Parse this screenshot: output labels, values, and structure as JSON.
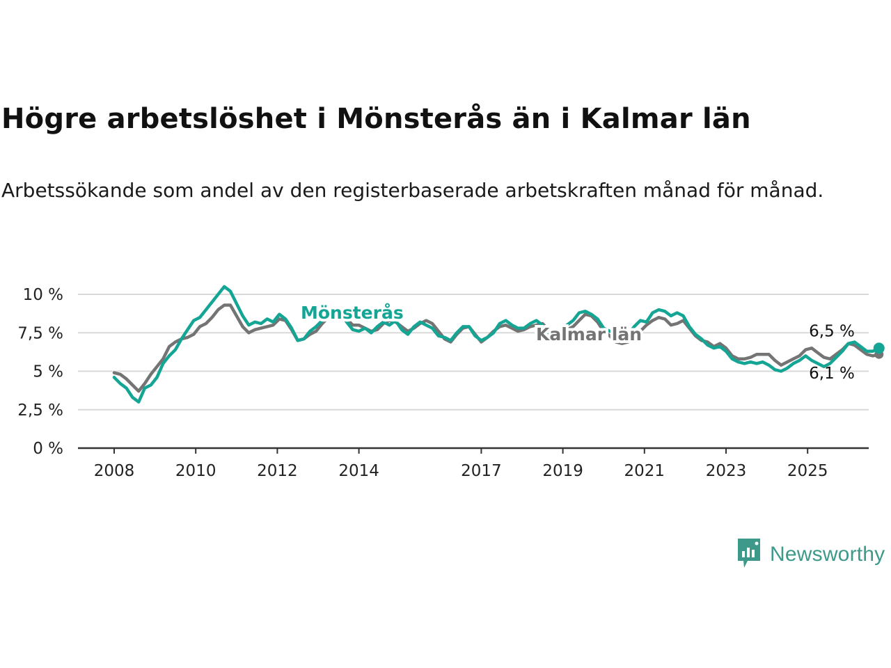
{
  "title": "Högre arbetslöshet i Mönsterås än i Kalmar län",
  "subtitle": "Arbetssökande som andel av den registerbaserade arbetskraften månad för månad.",
  "brand": {
    "name": "Newsworthy",
    "icon": "newsworthy-chart-icon",
    "color": "#3d9a8b"
  },
  "chart_data": {
    "type": "line",
    "x_type": "year",
    "xlim": [
      2006.8,
      2026.5
    ],
    "ylim": [
      0,
      10
    ],
    "y_ticks": [
      "0 %",
      "2,5 %",
      "5 %",
      "7,5 %",
      "10 %"
    ],
    "y_tick_values": [
      0,
      2.5,
      5,
      7.5,
      10
    ],
    "x_ticks": [
      "2008",
      "2010",
      "2012",
      "2014",
      "2017",
      "2019",
      "2021",
      "2023",
      "2025"
    ],
    "x_tick_values": [
      2008,
      2010,
      2012,
      2014,
      2017,
      2019,
      2021,
      2023,
      2025
    ],
    "grid": "horizontal",
    "series": [
      {
        "name": "Kalmar län",
        "color": "#747474",
        "end_label": "6,1 %",
        "points": [
          [
            2008.0,
            4.9
          ],
          [
            2008.15,
            4.8
          ],
          [
            2008.3,
            4.5
          ],
          [
            2008.45,
            4.1
          ],
          [
            2008.6,
            3.7
          ],
          [
            2008.75,
            4.2
          ],
          [
            2008.9,
            4.8
          ],
          [
            2009.05,
            5.3
          ],
          [
            2009.2,
            5.8
          ],
          [
            2009.35,
            6.6
          ],
          [
            2009.5,
            6.9
          ],
          [
            2009.65,
            7.1
          ],
          [
            2009.8,
            7.2
          ],
          [
            2009.95,
            7.4
          ],
          [
            2010.1,
            7.9
          ],
          [
            2010.25,
            8.1
          ],
          [
            2010.4,
            8.5
          ],
          [
            2010.55,
            9.0
          ],
          [
            2010.7,
            9.3
          ],
          [
            2010.85,
            9.3
          ],
          [
            2011.0,
            8.6
          ],
          [
            2011.15,
            7.9
          ],
          [
            2011.3,
            7.5
          ],
          [
            2011.45,
            7.7
          ],
          [
            2011.6,
            7.8
          ],
          [
            2011.75,
            7.9
          ],
          [
            2011.9,
            8.0
          ],
          [
            2012.05,
            8.4
          ],
          [
            2012.2,
            8.3
          ],
          [
            2012.35,
            7.7
          ],
          [
            2012.5,
            7.0
          ],
          [
            2012.65,
            7.1
          ],
          [
            2012.8,
            7.4
          ],
          [
            2012.95,
            7.6
          ],
          [
            2013.1,
            8.1
          ],
          [
            2013.25,
            8.5
          ],
          [
            2013.4,
            8.8
          ],
          [
            2013.55,
            8.9
          ],
          [
            2013.7,
            8.4
          ],
          [
            2013.85,
            8.0
          ],
          [
            2014.0,
            8.0
          ],
          [
            2014.15,
            7.8
          ],
          [
            2014.3,
            7.6
          ],
          [
            2014.45,
            7.7
          ],
          [
            2014.6,
            8.1
          ],
          [
            2014.75,
            8.3
          ],
          [
            2014.9,
            8.2
          ],
          [
            2015.05,
            7.9
          ],
          [
            2015.2,
            7.6
          ],
          [
            2015.35,
            7.8
          ],
          [
            2015.5,
            8.1
          ],
          [
            2015.65,
            8.3
          ],
          [
            2015.8,
            8.1
          ],
          [
            2015.95,
            7.6
          ],
          [
            2016.1,
            7.1
          ],
          [
            2016.25,
            6.9
          ],
          [
            2016.4,
            7.4
          ],
          [
            2016.55,
            7.8
          ],
          [
            2016.7,
            7.9
          ],
          [
            2016.85,
            7.4
          ],
          [
            2017.0,
            6.9
          ],
          [
            2017.15,
            7.2
          ],
          [
            2017.3,
            7.6
          ],
          [
            2017.45,
            7.9
          ],
          [
            2017.6,
            8.0
          ],
          [
            2017.75,
            7.8
          ],
          [
            2017.9,
            7.6
          ],
          [
            2018.05,
            7.7
          ],
          [
            2018.2,
            7.9
          ],
          [
            2018.35,
            8.0
          ],
          [
            2018.5,
            8.1
          ],
          [
            2018.65,
            7.7
          ],
          [
            2018.8,
            7.3
          ],
          [
            2018.95,
            7.4
          ],
          [
            2019.1,
            7.7
          ],
          [
            2019.25,
            7.9
          ],
          [
            2019.4,
            8.3
          ],
          [
            2019.55,
            8.7
          ],
          [
            2019.7,
            8.6
          ],
          [
            2019.85,
            8.2
          ],
          [
            2020.0,
            7.6
          ],
          [
            2020.15,
            7.3
          ],
          [
            2020.3,
            6.9
          ],
          [
            2020.45,
            6.8
          ],
          [
            2020.6,
            6.9
          ],
          [
            2020.75,
            7.2
          ],
          [
            2020.9,
            7.6
          ],
          [
            2021.05,
            8.0
          ],
          [
            2021.2,
            8.3
          ],
          [
            2021.35,
            8.5
          ],
          [
            2021.5,
            8.4
          ],
          [
            2021.65,
            8.0
          ],
          [
            2021.8,
            8.1
          ],
          [
            2021.95,
            8.3
          ],
          [
            2022.1,
            7.8
          ],
          [
            2022.25,
            7.3
          ],
          [
            2022.4,
            7.0
          ],
          [
            2022.55,
            6.9
          ],
          [
            2022.7,
            6.6
          ],
          [
            2022.85,
            6.8
          ],
          [
            2023.0,
            6.5
          ],
          [
            2023.15,
            6.0
          ],
          [
            2023.3,
            5.8
          ],
          [
            2023.45,
            5.8
          ],
          [
            2023.6,
            5.9
          ],
          [
            2023.75,
            6.1
          ],
          [
            2023.9,
            6.1
          ],
          [
            2024.05,
            6.1
          ],
          [
            2024.2,
            5.7
          ],
          [
            2024.35,
            5.4
          ],
          [
            2024.5,
            5.6
          ],
          [
            2024.65,
            5.8
          ],
          [
            2024.8,
            6.0
          ],
          [
            2024.95,
            6.4
          ],
          [
            2025.1,
            6.5
          ],
          [
            2025.25,
            6.2
          ],
          [
            2025.4,
            5.9
          ],
          [
            2025.55,
            5.8
          ],
          [
            2025.7,
            6.1
          ],
          [
            2025.85,
            6.4
          ],
          [
            2026.0,
            6.8
          ],
          [
            2026.15,
            6.7
          ],
          [
            2026.3,
            6.4
          ],
          [
            2026.45,
            6.1
          ],
          [
            2026.6,
            6.0
          ],
          [
            2026.75,
            6.1
          ]
        ]
      },
      {
        "name": "Mönsterås",
        "color": "#14a594",
        "end_label": "6,5 %",
        "points": [
          [
            2008.0,
            4.6
          ],
          [
            2008.15,
            4.2
          ],
          [
            2008.3,
            3.9
          ],
          [
            2008.45,
            3.3
          ],
          [
            2008.6,
            3.0
          ],
          [
            2008.75,
            3.9
          ],
          [
            2008.9,
            4.1
          ],
          [
            2009.05,
            4.6
          ],
          [
            2009.2,
            5.5
          ],
          [
            2009.35,
            6.0
          ],
          [
            2009.5,
            6.4
          ],
          [
            2009.65,
            7.1
          ],
          [
            2009.8,
            7.7
          ],
          [
            2009.95,
            8.3
          ],
          [
            2010.1,
            8.5
          ],
          [
            2010.25,
            9.0
          ],
          [
            2010.4,
            9.5
          ],
          [
            2010.55,
            10.0
          ],
          [
            2010.7,
            10.5
          ],
          [
            2010.85,
            10.2
          ],
          [
            2011.0,
            9.4
          ],
          [
            2011.15,
            8.6
          ],
          [
            2011.3,
            8.0
          ],
          [
            2011.45,
            8.2
          ],
          [
            2011.6,
            8.1
          ],
          [
            2011.75,
            8.4
          ],
          [
            2011.9,
            8.2
          ],
          [
            2012.05,
            8.7
          ],
          [
            2012.2,
            8.4
          ],
          [
            2012.35,
            7.8
          ],
          [
            2012.5,
            7.0
          ],
          [
            2012.65,
            7.1
          ],
          [
            2012.8,
            7.6
          ],
          [
            2012.95,
            7.9
          ],
          [
            2013.1,
            8.3
          ],
          [
            2013.25,
            8.8
          ],
          [
            2013.4,
            9.0
          ],
          [
            2013.55,
            8.8
          ],
          [
            2013.7,
            8.2
          ],
          [
            2013.85,
            7.7
          ],
          [
            2014.0,
            7.6
          ],
          [
            2014.15,
            7.8
          ],
          [
            2014.3,
            7.5
          ],
          [
            2014.45,
            7.9
          ],
          [
            2014.6,
            8.2
          ],
          [
            2014.75,
            8.0
          ],
          [
            2014.9,
            8.3
          ],
          [
            2015.05,
            7.7
          ],
          [
            2015.2,
            7.4
          ],
          [
            2015.35,
            7.9
          ],
          [
            2015.5,
            8.2
          ],
          [
            2015.65,
            8.0
          ],
          [
            2015.8,
            7.8
          ],
          [
            2015.95,
            7.3
          ],
          [
            2016.1,
            7.2
          ],
          [
            2016.25,
            7.0
          ],
          [
            2016.4,
            7.5
          ],
          [
            2016.55,
            7.9
          ],
          [
            2016.7,
            7.9
          ],
          [
            2016.85,
            7.3
          ],
          [
            2017.0,
            7.0
          ],
          [
            2017.15,
            7.2
          ],
          [
            2017.3,
            7.5
          ],
          [
            2017.45,
            8.1
          ],
          [
            2017.6,
            8.3
          ],
          [
            2017.75,
            8.0
          ],
          [
            2017.9,
            7.8
          ],
          [
            2018.05,
            7.8
          ],
          [
            2018.2,
            8.1
          ],
          [
            2018.35,
            8.3
          ],
          [
            2018.5,
            8.0
          ],
          [
            2018.65,
            7.4
          ],
          [
            2018.8,
            7.2
          ],
          [
            2018.95,
            7.5
          ],
          [
            2019.1,
            8.0
          ],
          [
            2019.25,
            8.3
          ],
          [
            2019.4,
            8.8
          ],
          [
            2019.55,
            8.9
          ],
          [
            2019.7,
            8.7
          ],
          [
            2019.85,
            8.4
          ],
          [
            2020.0,
            7.8
          ],
          [
            2020.15,
            7.6
          ],
          [
            2020.3,
            7.5
          ],
          [
            2020.45,
            7.0
          ],
          [
            2020.6,
            7.4
          ],
          [
            2020.75,
            7.9
          ],
          [
            2020.9,
            8.3
          ],
          [
            2021.05,
            8.2
          ],
          [
            2021.2,
            8.8
          ],
          [
            2021.35,
            9.0
          ],
          [
            2021.5,
            8.9
          ],
          [
            2021.65,
            8.6
          ],
          [
            2021.8,
            8.8
          ],
          [
            2021.95,
            8.6
          ],
          [
            2022.1,
            7.9
          ],
          [
            2022.25,
            7.4
          ],
          [
            2022.4,
            7.1
          ],
          [
            2022.55,
            6.7
          ],
          [
            2022.7,
            6.5
          ],
          [
            2022.85,
            6.6
          ],
          [
            2023.0,
            6.3
          ],
          [
            2023.15,
            5.8
          ],
          [
            2023.3,
            5.6
          ],
          [
            2023.45,
            5.5
          ],
          [
            2023.6,
            5.6
          ],
          [
            2023.75,
            5.5
          ],
          [
            2023.9,
            5.6
          ],
          [
            2024.05,
            5.4
          ],
          [
            2024.2,
            5.1
          ],
          [
            2024.35,
            5.0
          ],
          [
            2024.5,
            5.2
          ],
          [
            2024.65,
            5.5
          ],
          [
            2024.8,
            5.7
          ],
          [
            2024.95,
            6.0
          ],
          [
            2025.1,
            5.7
          ],
          [
            2025.25,
            5.5
          ],
          [
            2025.4,
            5.3
          ],
          [
            2025.55,
            5.5
          ],
          [
            2025.7,
            5.9
          ],
          [
            2025.85,
            6.3
          ],
          [
            2026.0,
            6.8
          ],
          [
            2026.15,
            6.9
          ],
          [
            2026.3,
            6.6
          ],
          [
            2026.45,
            6.3
          ],
          [
            2026.6,
            6.3
          ],
          [
            2026.75,
            6.5
          ]
        ]
      }
    ]
  }
}
